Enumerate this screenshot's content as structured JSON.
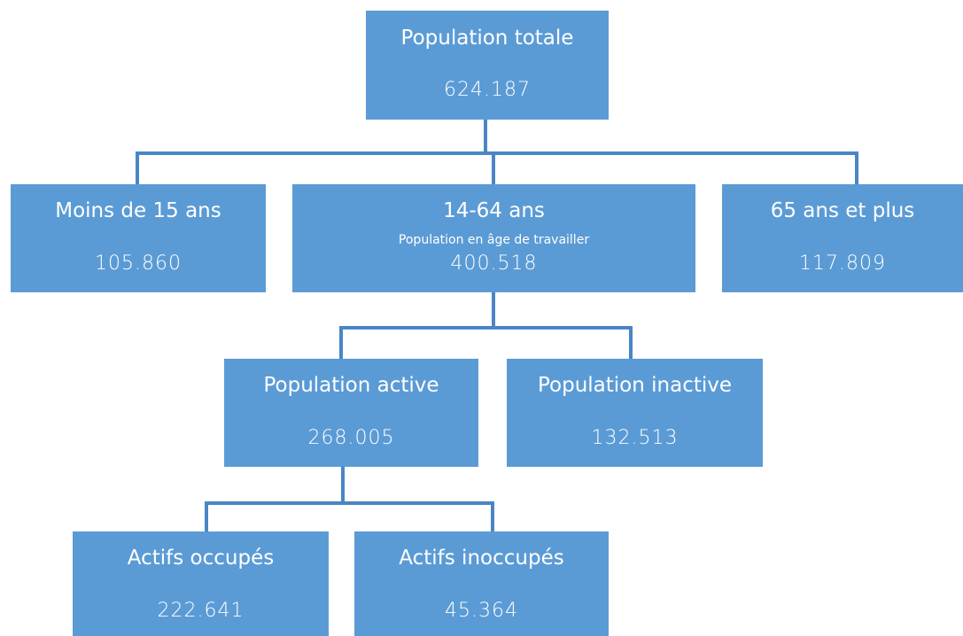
{
  "nodes": [
    {
      "label": "Population totale",
      "value": "624.187"
    },
    {
      "label": "Moins de 15 ans",
      "value": "105.860"
    },
    {
      "label": "14-64 ans",
      "sublabel": "Population en âge de travailler",
      "value": "400.518"
    },
    {
      "label": "65 ans et plus",
      "value": "117.809"
    },
    {
      "label": "Population active",
      "value": "268.005"
    },
    {
      "label": "Population inactive",
      "value": "132.513"
    },
    {
      "label": "Actifs occupés",
      "value": "222.641"
    },
    {
      "label": "Actifs inoccupés",
      "value": "45.364"
    }
  ]
}
